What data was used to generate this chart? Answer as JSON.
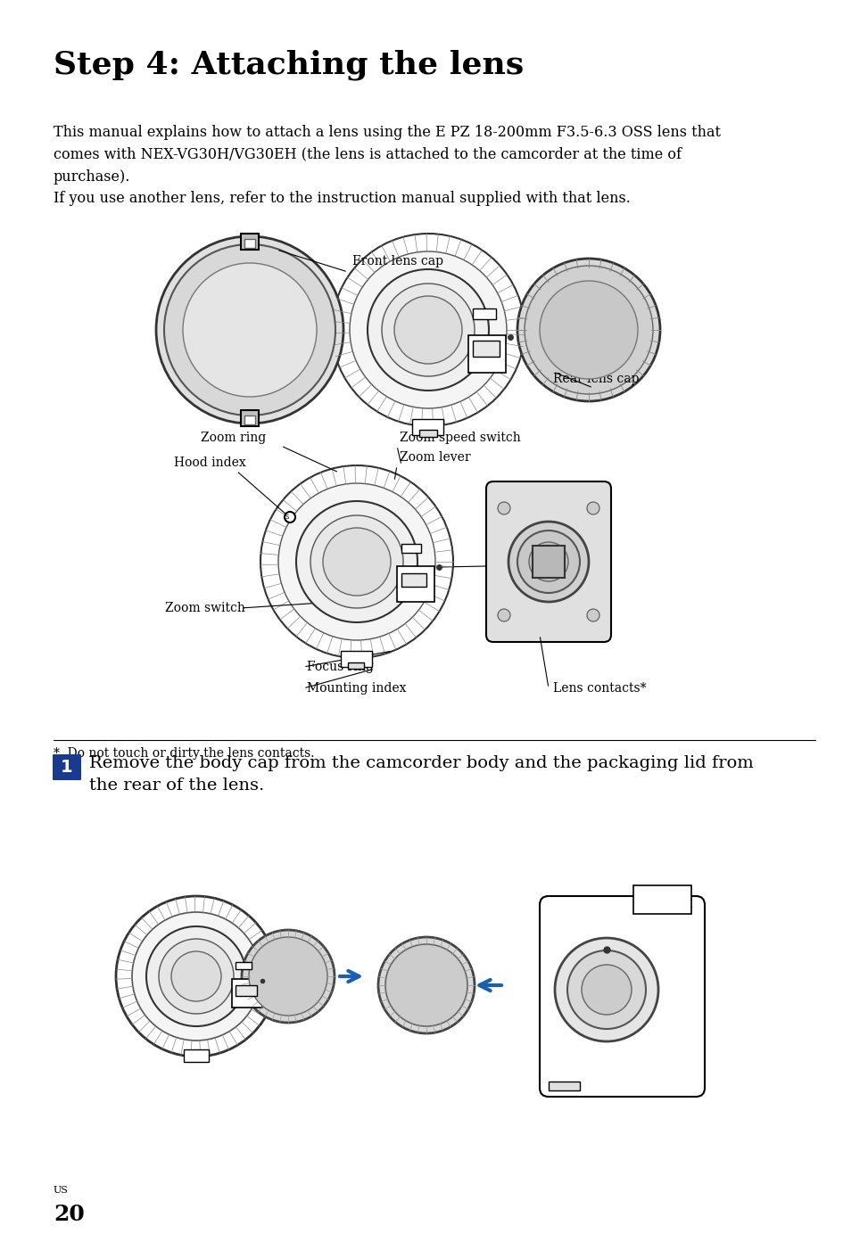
{
  "title": "Step 4: Attaching the lens",
  "bg_color": "#ffffff",
  "text_color": "#000000",
  "title_fontsize": 26,
  "body_fontsize": 11.5,
  "body_text": "This manual explains how to attach a lens using the E PZ 18-200mm F3.5-6.3 OSS lens that\ncomes with NEX-VG30H/VG30EH (the lens is attached to the camcorder at the time of\npurchase).\nIf you use another lens, refer to the instruction manual supplied with that lens.",
  "footnote_text": "*  Do not touch or dirty the lens contacts.",
  "step1_text": "Remove the body cap from the camcorder body and the packaging lid from\nthe rear of the lens.",
  "step1_fontsize": 14,
  "page_us": "US",
  "page_num": "20",
  "label_fontsize": 10
}
